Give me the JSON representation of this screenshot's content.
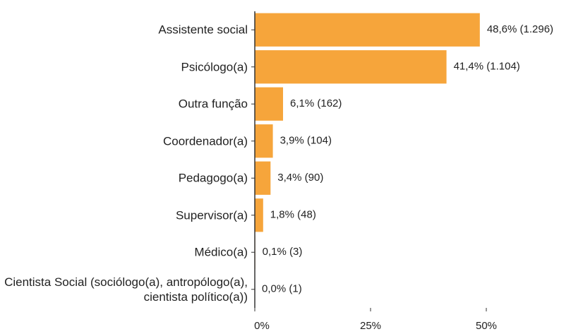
{
  "chart_data": {
    "type": "barh",
    "categories": [
      "Assistente social",
      "Psicólogo(a)",
      "Outra função",
      "Coordenador(a)",
      "Pedagogo(a)",
      "Supervisor(a)",
      "Médico(a)",
      "Cientista Social (sociólogo(a), antropólogo(a), cientista político(a))"
    ],
    "values": [
      48.6,
      41.4,
      6.1,
      3.9,
      3.4,
      1.8,
      0.1,
      0.0
    ],
    "value_labels": [
      "48,6% (1.296)",
      "41,4% (1.104)",
      "6,1% (162)",
      "3,9% (104)",
      "3,4% (90)",
      "1,8% (48)",
      "0,1% (3)",
      "0,0% (1)"
    ],
    "color": "#f6a53b",
    "xlim": [
      0,
      50
    ],
    "xticks": [
      {
        "value": 0,
        "label": "0%"
      },
      {
        "value": 25,
        "label": "25%"
      },
      {
        "value": 50,
        "label": "50%"
      }
    ],
    "grid": false
  }
}
